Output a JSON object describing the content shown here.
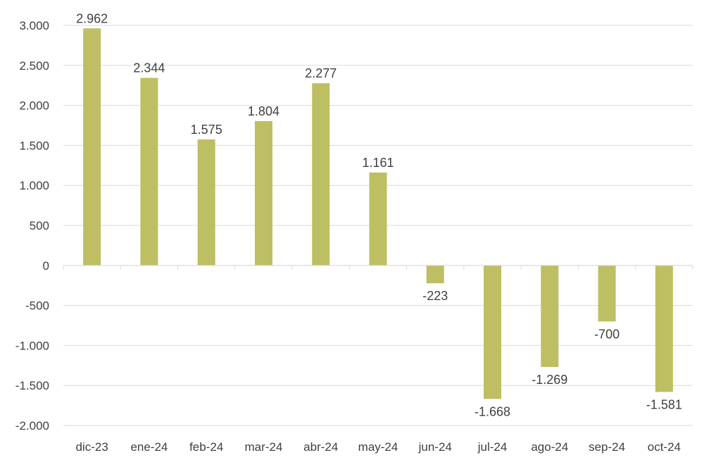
{
  "chart_data": {
    "type": "bar",
    "title": "",
    "xlabel": "",
    "ylabel": "",
    "categories": [
      "dic-23",
      "ene-24",
      "feb-24",
      "mar-24",
      "abr-24",
      "may-24",
      "jun-24",
      "jul-24",
      "ago-24",
      "sep-24",
      "oct-24"
    ],
    "values": [
      2962,
      2344,
      1575,
      1804,
      2277,
      1161,
      -223,
      -1668,
      -1269,
      -700,
      -1581
    ],
    "value_labels": [
      "2.962",
      "2.344",
      "1.575",
      "1.804",
      "2.277",
      "1.161",
      "-223",
      "-1.668",
      "-1.269",
      "-700",
      "-1.581"
    ],
    "ylim": [
      -2000,
      3000
    ],
    "yticks": [
      3000,
      2500,
      2000,
      1500,
      1000,
      500,
      0,
      -500,
      -1000,
      -1500,
      -2000
    ],
    "ytick_labels": [
      "3.000",
      "2.500",
      "2.000",
      "1.500",
      "1.000",
      "500",
      "0",
      "-500",
      "-1.000",
      "-1.500",
      "-2.000"
    ],
    "grid": true,
    "legend": "none",
    "bar_color": "#BDBF62",
    "grid_color": "#D9D9D9"
  }
}
